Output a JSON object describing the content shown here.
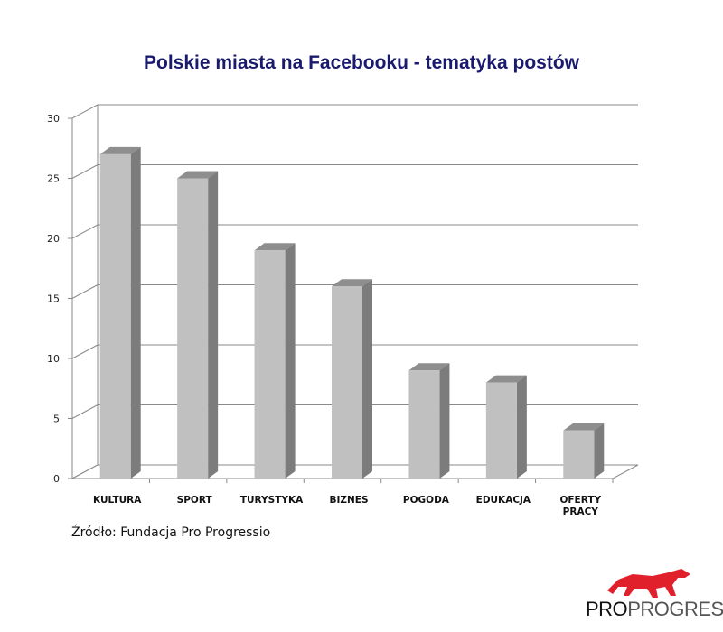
{
  "chart_data": {
    "type": "bar",
    "title": "Polskie miasta na Facebooku - tematyka postów",
    "categories": [
      "KULTURA",
      "SPORT",
      "TURYSTYKA",
      "BIZNES",
      "POGODA",
      "EDUKACJA",
      "OFERTY PRACY"
    ],
    "values": [
      27,
      25,
      19,
      16,
      9,
      8,
      4
    ],
    "ylim": [
      0,
      30
    ],
    "yticks": [
      0,
      5,
      10,
      15,
      20,
      25,
      30
    ],
    "grid": true,
    "bar_color": "#c0c0c0"
  },
  "source": "Źródło: Fundacja Pro Progressio",
  "logo": {
    "part1": "PRO",
    "part2": "PROGRESSIO",
    "accent": "#e0202a"
  }
}
